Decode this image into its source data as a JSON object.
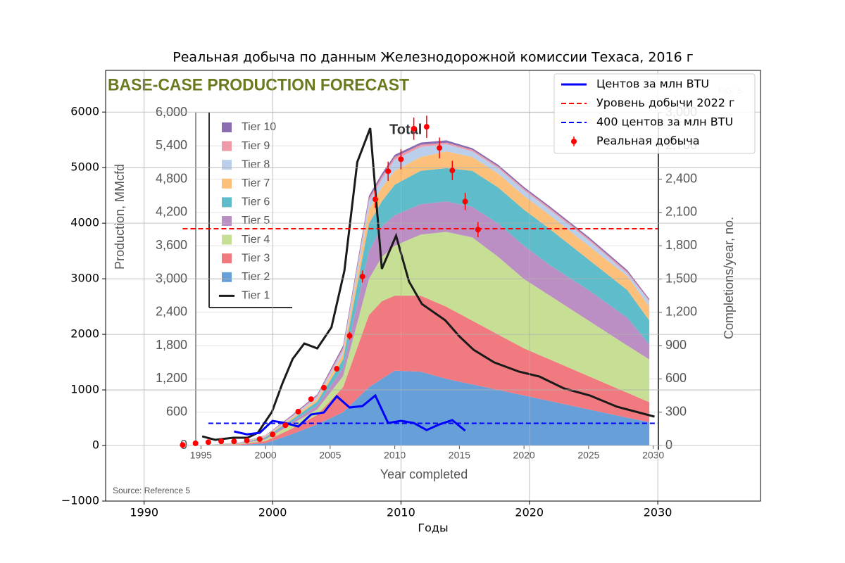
{
  "chart_data": [
    {
      "type": "area",
      "title": "BASE-CASE PRODUCTION FORECAST",
      "fig_label": "FIG. 5",
      "annotation": "Total",
      "source": "Source: Reference 5",
      "xlabel": "Year completed",
      "ylabel": "Production, MMcfd",
      "y2label": "Completions/year, no.",
      "xlim": [
        1994.6,
        2030.4
      ],
      "ylim": [
        0,
        6000
      ],
      "y2lim": [
        0,
        3000
      ],
      "xticks": [
        1995,
        2000,
        2005,
        2010,
        2015,
        2020,
        2025,
        2030
      ],
      "yticks": [
        0,
        600,
        {
          "value": 1200,
          "label": "1,200"
        },
        {
          "value": 1800,
          "label": "1,800"
        },
        {
          "value": 2400,
          "label": "2,400"
        },
        {
          "value": 3000,
          "label": "3,000"
        },
        {
          "value": 3600,
          "label": "3,600"
        },
        {
          "value": 4200,
          "label": "4,200"
        },
        {
          "value": 4800,
          "label": "4,800"
        },
        {
          "value": 5400,
          "label": "5,400"
        },
        {
          "value": 6000,
          "label": "6,000"
        }
      ],
      "y2ticks": [
        0,
        300,
        600,
        900,
        {
          "value": 1200,
          "label": "1,200"
        },
        {
          "value": 1500,
          "label": "1,500"
        },
        {
          "value": 1800,
          "label": "1,800"
        },
        {
          "value": 2100,
          "label": "2,100"
        },
        {
          "value": 2400,
          "label": "2,400"
        },
        {
          "value": 2700,
          "label": "2,700"
        },
        {
          "value": 3000,
          "label": "3,000"
        }
      ],
      "grid": true,
      "stacked": true,
      "legend": "upper left",
      "x": [
        1995,
        1998,
        2000,
        2002,
        2004,
        2006,
        2008,
        2009,
        2010,
        2012,
        2014,
        2016,
        2018,
        2020,
        2022,
        2025,
        2028,
        2029.7
      ],
      "series": [
        {
          "name": "Tier 2",
          "color": "#67a0d8",
          "values": [
            0,
            10,
            40,
            200,
            380,
            600,
            1050,
            1200,
            1350,
            1330,
            1200,
            1100,
            1000,
            900,
            800,
            650,
            500,
            420
          ]
        },
        {
          "name": "Tier 3",
          "color": "#f07a80",
          "values": [
            0,
            10,
            40,
            100,
            170,
            450,
            1300,
            1400,
            1350,
            1370,
            1300,
            1150,
            1000,
            850,
            750,
            600,
            450,
            360
          ]
        },
        {
          "name": "Tier 4",
          "color": "#c7df94",
          "values": [
            0,
            10,
            30,
            80,
            100,
            200,
            650,
            800,
            900,
            1100,
            1350,
            1500,
            1400,
            1250,
            1150,
            1000,
            850,
            770
          ]
        },
        {
          "name": "Tier 5",
          "color": "#bb8fc3",
          "values": [
            0,
            5,
            20,
            40,
            70,
            150,
            500,
            550,
            550,
            550,
            550,
            550,
            600,
            600,
            550,
            550,
            500,
            270
          ]
        },
        {
          "name": "Tier 6",
          "color": "#5fbccb",
          "values": [
            0,
            5,
            20,
            40,
            70,
            150,
            500,
            450,
            550,
            600,
            600,
            650,
            650,
            650,
            650,
            550,
            500,
            430
          ]
        },
        {
          "name": "Tier 7",
          "color": "#fcc07a",
          "values": [
            0,
            5,
            15,
            30,
            50,
            100,
            250,
            250,
            250,
            250,
            300,
            250,
            250,
            250,
            250,
            250,
            250,
            250
          ]
        },
        {
          "name": "Tier 8",
          "color": "#b9cfec",
          "values": [
            0,
            5,
            10,
            20,
            40,
            70,
            150,
            150,
            200,
            180,
            130,
            100,
            100,
            100,
            100,
            100,
            50,
            100
          ]
        },
        {
          "name": "Tier 9",
          "color": "#ee9aa8",
          "values": [
            0,
            2,
            5,
            15,
            20,
            40,
            50,
            50,
            50,
            40,
            30,
            30,
            30,
            30,
            30,
            30,
            30,
            20
          ]
        },
        {
          "name": "Tier 10",
          "color": "#8a6cb0",
          "values": [
            0,
            3,
            5,
            15,
            20,
            40,
            50,
            50,
            40,
            40,
            40,
            30,
            30,
            30,
            30,
            30,
            30,
            20
          ]
        },
        {
          "name": "Tier 1",
          "color": "#1a1a1a",
          "axis": "y2",
          "style": "line",
          "x": [
            1995.1,
            1996.1,
            1997.5,
            1998.6,
            1999.4,
            2000.5,
            2001.3,
            2002.1,
            2003.0,
            2004.0,
            2005.1,
            2006.1,
            2007.1,
            2008.1,
            2009.0,
            2010.1,
            2011.1,
            2012.1,
            2013.9,
            2015.0,
            2016.1,
            2017.7,
            2019.6,
            2021.2,
            2023.1,
            2025.1,
            2027.2,
            2030.1
          ],
          "values": [
            82,
            51,
            70,
            70,
            114,
            304,
            558,
            780,
            919,
            875,
            1065,
            1573,
            2555,
            2860,
            1592,
            1890,
            1478,
            1275,
            1129,
            983,
            862,
            748,
            666,
            621,
            514,
            450,
            349,
            260
          ]
        }
      ]
    },
    {
      "type": "line",
      "title": "Реальная добыча по данным Железнодорожной комиссии Техаса, 2016 г",
      "xlabel": "Годы",
      "xlim": [
        1987,
        2038
      ],
      "ylim": [
        -1000,
        6750
      ],
      "xticks": [
        1990,
        2000,
        2010,
        2020,
        2030
      ],
      "yticks": [
        {
          "value": -1000,
          "label": "−1000"
        },
        0,
        1000,
        2000,
        3000,
        4000,
        5000,
        6000
      ],
      "grid": true,
      "legend": "upper right",
      "series": [
        {
          "name": "Центов за млн BTU",
          "color": "#0000ff",
          "style": "solid",
          "x": [
            1997,
            1998,
            1999,
            2000,
            2001,
            2002,
            2003,
            2004,
            2005,
            2006,
            2007,
            2008,
            2009,
            2010,
            2011,
            2012,
            2013,
            2014,
            2015
          ],
          "values": [
            253,
            200,
            228,
            443,
            405,
            342,
            557,
            595,
            886,
            684,
            709,
            899,
            405,
            443,
            405,
            278,
            380,
            456,
            266
          ]
        },
        {
          "name": "Уровень добычи 2022 г",
          "color": "#ff0000",
          "style": "dashed",
          "x": [
            1993,
            2030
          ],
          "values": [
            3900,
            3900
          ]
        },
        {
          "name": "400 центов за млн BTU",
          "color": "#0000ff",
          "style": "dashed",
          "x": [
            1995,
            2030
          ],
          "values": [
            400,
            400
          ]
        },
        {
          "name": "Реальная добыча",
          "color": "#ff0000",
          "style": "points",
          "x": [
            1993,
            1994,
            1995,
            1996,
            1997,
            1998,
            1999,
            2000,
            2001,
            2002,
            2003,
            2004,
            2005,
            2006,
            2007,
            2008,
            2009,
            2010,
            2011,
            2012,
            2013,
            2014,
            2015,
            2016
          ],
          "values": [
            10,
            40,
            60,
            75,
            75,
            90,
            115,
            200,
            365,
            610,
            835,
            1040,
            1380,
            1975,
            3040,
            4430,
            4935,
            5150,
            5700,
            5735,
            5355,
            4950,
            4390,
            3885
          ],
          "errors": [
            0,
            1,
            2,
            3,
            3,
            3,
            4,
            7,
            13,
            21,
            29,
            36,
            48,
            69,
            106,
            155,
            173,
            180,
            200,
            200,
            187,
            173,
            154,
            136
          ]
        }
      ]
    }
  ]
}
